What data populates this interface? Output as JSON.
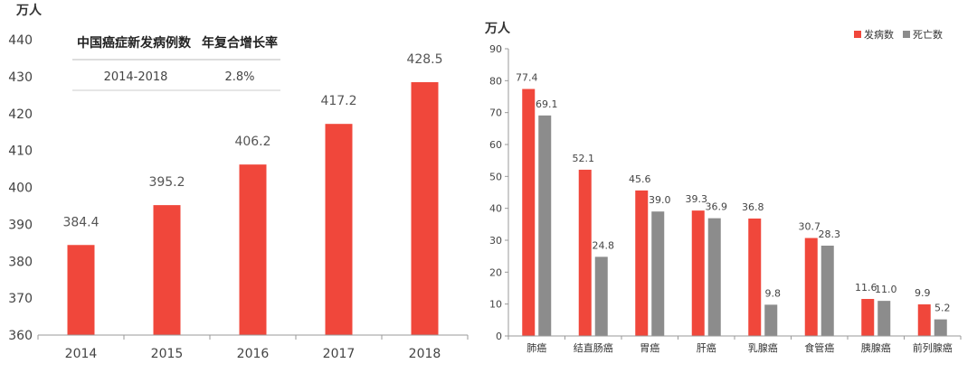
{
  "colors": {
    "incidence": "#f0473b",
    "death": "#8c8c8c",
    "axis": "#9a9a9a"
  },
  "chart_data": [
    {
      "type": "bar",
      "ylabel": "万人",
      "categories": [
        "2014",
        "2015",
        "2016",
        "2017",
        "2018"
      ],
      "values": [
        384.4,
        395.2,
        406.2,
        417.2,
        428.5
      ],
      "ylim": [
        360,
        440
      ],
      "yticks": [
        360,
        370,
        380,
        390,
        400,
        410,
        420,
        430,
        440
      ],
      "data_labels": [
        "384.4",
        "395.2",
        "406.2",
        "417.2",
        "428.5"
      ],
      "inset_table": {
        "headers": [
          "中国癌症新发病例数",
          "年复合增长率"
        ],
        "row": [
          "2014-2018",
          "2.8%"
        ]
      }
    },
    {
      "type": "bar",
      "ylabel": "万人",
      "categories": [
        "肺癌",
        "结直肠癌",
        "胃癌",
        "肝癌",
        "乳腺癌",
        "食管癌",
        "胰腺癌",
        "前列腺癌"
      ],
      "ylim": [
        0,
        90
      ],
      "yticks": [
        0,
        10,
        20,
        30,
        40,
        50,
        60,
        70,
        80,
        90
      ],
      "legend_position": "top-right",
      "series": [
        {
          "name": "发病数",
          "values": [
            77.4,
            52.1,
            45.6,
            39.3,
            36.8,
            30.7,
            11.6,
            9.9
          ],
          "labels": [
            "77.4",
            "52.1",
            "45.6",
            "39.3",
            "36.8",
            "30.7",
            "11.6",
            "9.9"
          ]
        },
        {
          "name": "死亡数",
          "values": [
            69.1,
            24.8,
            39.0,
            36.9,
            9.8,
            28.3,
            11.0,
            5.2
          ],
          "labels": [
            "69.1",
            "24.8",
            "39.0",
            "36.9",
            "9.8",
            "28.3",
            "11.0",
            "5.2"
          ]
        }
      ]
    }
  ]
}
